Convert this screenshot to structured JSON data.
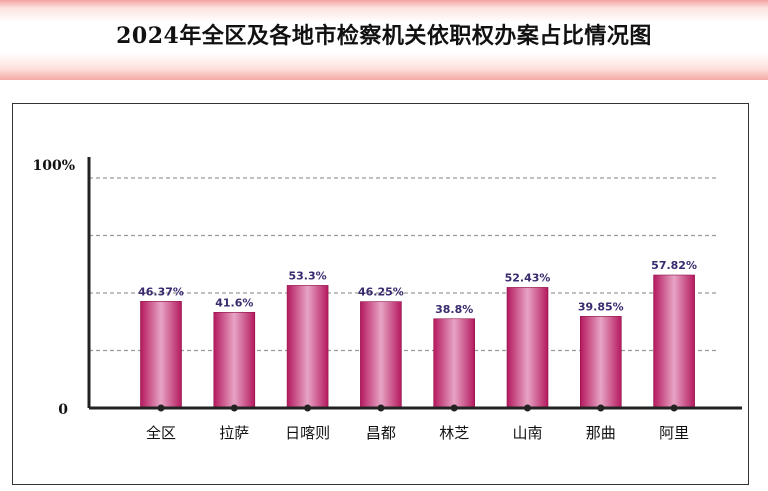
{
  "title": "2024年全区及各地市检察机关依职权办案占比情况图",
  "chart_data": {
    "type": "bar",
    "title": "2024年全区及各地市检察机关依职权办案占比情况图",
    "categories": [
      "全区",
      "拉萨",
      "日喀则",
      "昌都",
      "林芝",
      "山南",
      "那曲",
      "阿里"
    ],
    "values": [
      46.37,
      41.6,
      53.3,
      46.25,
      38.8,
      52.43,
      39.85,
      57.82
    ],
    "value_labels": [
      "46.37%",
      "41.6%",
      "53.3%",
      "46.25%",
      "38.8%",
      "52.43%",
      "39.85%",
      "57.82%"
    ],
    "ylim": [
      0,
      100
    ],
    "ytick_labels": {
      "max": "100%",
      "min": "0"
    },
    "grid": true,
    "grid_values": [
      25,
      50,
      75,
      100
    ],
    "legend": "none",
    "colors": {
      "bar_edge": "#b5195f",
      "bar_center": "#e7a4c4",
      "label": "#3a2a6e",
      "axis": "#222222",
      "grid": "#9a9a9a"
    }
  }
}
